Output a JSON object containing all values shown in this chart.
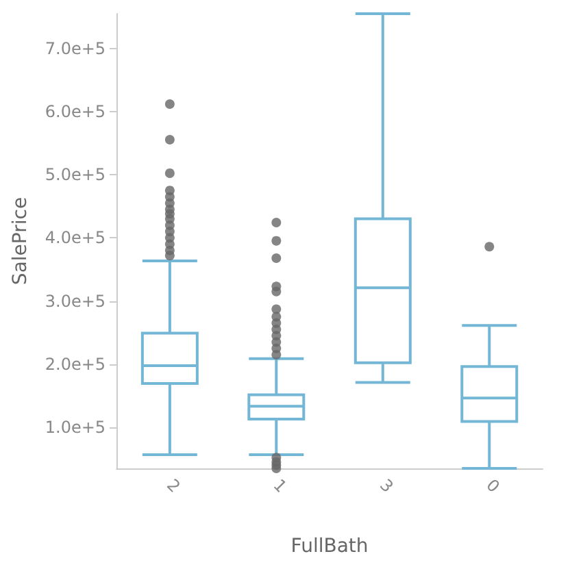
{
  "chart_data": {
    "type": "box",
    "xlabel": "FullBath",
    "ylabel": "SalePrice",
    "categories": [
      "2",
      "1",
      "3",
      "0"
    ],
    "ylim": [
      34900,
      755000
    ],
    "yticks": [
      {
        "value": 100000,
        "label": "1.0e+5"
      },
      {
        "value": 200000,
        "label": "2.0e+5"
      },
      {
        "value": 300000,
        "label": "3.0e+5"
      },
      {
        "value": 400000,
        "label": "4.0e+5"
      },
      {
        "value": 500000,
        "label": "5.0e+5"
      },
      {
        "value": 600000,
        "label": "6.0e+5"
      },
      {
        "value": 700000,
        "label": "7.0e+5"
      }
    ],
    "grid": false,
    "series": [
      {
        "color": "#74b6d5",
        "boxes": [
          {
            "low": 56600,
            "q1": 169500,
            "median": 197700,
            "q3": 249200,
            "high": 363400,
            "outliers": [
              611800,
              555400,
              502400,
              475000,
              465000,
              455000,
              445000,
              438000,
              430000,
              420000,
              410000,
              400000,
              390000,
              380000,
              372000
            ]
          },
          {
            "low": 56600,
            "q1": 113000,
            "median": 133200,
            "q3": 151500,
            "high": 208600,
            "outliers": [
              424200,
              395300,
              367800,
              323000,
              315000,
              287000,
              275000,
              265000,
              255000,
              245000,
              235000,
              225000,
              215000,
              52000,
              45000,
              40000,
              35000
            ]
          },
          {
            "low": 171000,
            "q1": 202100,
            "median": 320800,
            "q3": 430100,
            "high": 755000
          },
          {
            "low": 35000,
            "q1": 109300,
            "median": 146200,
            "q3": 196200,
            "high": 261300,
            "outliers": [
              386000
            ]
          }
        ]
      }
    ]
  }
}
